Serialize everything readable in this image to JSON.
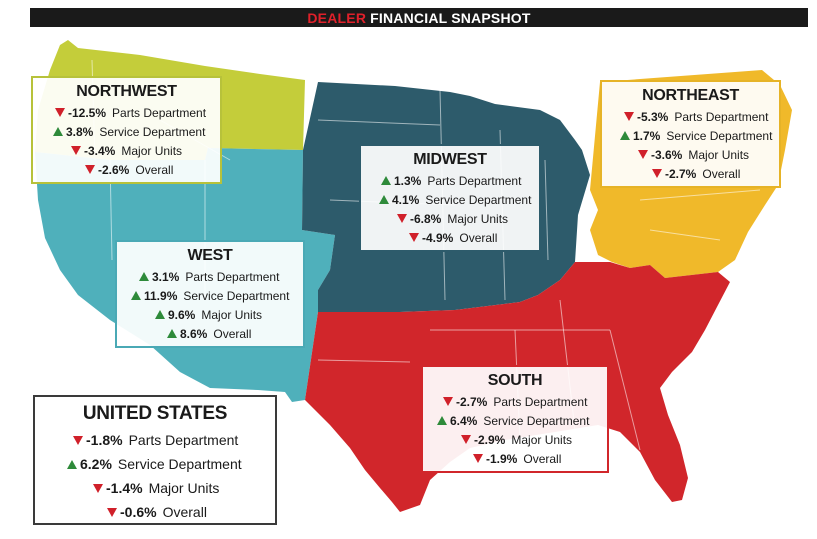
{
  "title": {
    "accent": "DEALER",
    "rest": "FINANCIAL SNAPSHOT"
  },
  "colors": {
    "northwest": "#c4cd3a",
    "west": "#4fb0bb",
    "midwest": "#2d5b6b",
    "northeast": "#f0b92a",
    "south": "#d1262b",
    "up_arrow": "#2e8a3a",
    "down_arrow": "#d0202a",
    "title_bar": "#1a1a1a"
  },
  "regions": {
    "northwest": {
      "name": "NORTHWEST",
      "stats": [
        {
          "dir": "down",
          "value": "-12.5%",
          "label": "Parts Department"
        },
        {
          "dir": "up",
          "value": "3.8%",
          "label": "Service Department"
        },
        {
          "dir": "down",
          "value": "-3.4%",
          "label": "Major Units"
        },
        {
          "dir": "down",
          "value": "-2.6%",
          "label": "Overall"
        }
      ]
    },
    "midwest": {
      "name": "MIDWEST",
      "stats": [
        {
          "dir": "up",
          "value": "1.3%",
          "label": "Parts Department"
        },
        {
          "dir": "up",
          "value": "4.1%",
          "label": "Service Department"
        },
        {
          "dir": "down",
          "value": "-6.8%",
          "label": "Major Units"
        },
        {
          "dir": "down",
          "value": "-4.9%",
          "label": "Overall"
        }
      ]
    },
    "northeast": {
      "name": "NORTHEAST",
      "stats": [
        {
          "dir": "down",
          "value": "-5.3%",
          "label": "Parts Department"
        },
        {
          "dir": "up",
          "value": "1.7%",
          "label": "Service Department"
        },
        {
          "dir": "down",
          "value": "-3.6%",
          "label": "Major Units"
        },
        {
          "dir": "down",
          "value": "-2.7%",
          "label": "Overall"
        }
      ]
    },
    "west": {
      "name": "WEST",
      "stats": [
        {
          "dir": "up",
          "value": "3.1%",
          "label": "Parts Department"
        },
        {
          "dir": "up",
          "value": "11.9%",
          "label": "Service Department"
        },
        {
          "dir": "up",
          "value": "9.6%",
          "label": "Major Units"
        },
        {
          "dir": "up",
          "value": "8.6%",
          "label": "Overall"
        }
      ]
    },
    "south": {
      "name": "SOUTH",
      "stats": [
        {
          "dir": "down",
          "value": "-2.7%",
          "label": "Parts Department"
        },
        {
          "dir": "up",
          "value": "6.4%",
          "label": "Service Department"
        },
        {
          "dir": "down",
          "value": "-2.9%",
          "label": "Major Units"
        },
        {
          "dir": "down",
          "value": "-1.9%",
          "label": "Overall"
        }
      ]
    },
    "united_states": {
      "name": "UNITED STATES",
      "stats": [
        {
          "dir": "down",
          "value": "-1.8%",
          "label": "Parts Department"
        },
        {
          "dir": "up",
          "value": "6.2%",
          "label": "Service Department"
        },
        {
          "dir": "down",
          "value": "-1.4%",
          "label": "Major Units"
        },
        {
          "dir": "down",
          "value": "-0.6%",
          "label": "Overall"
        }
      ]
    }
  }
}
